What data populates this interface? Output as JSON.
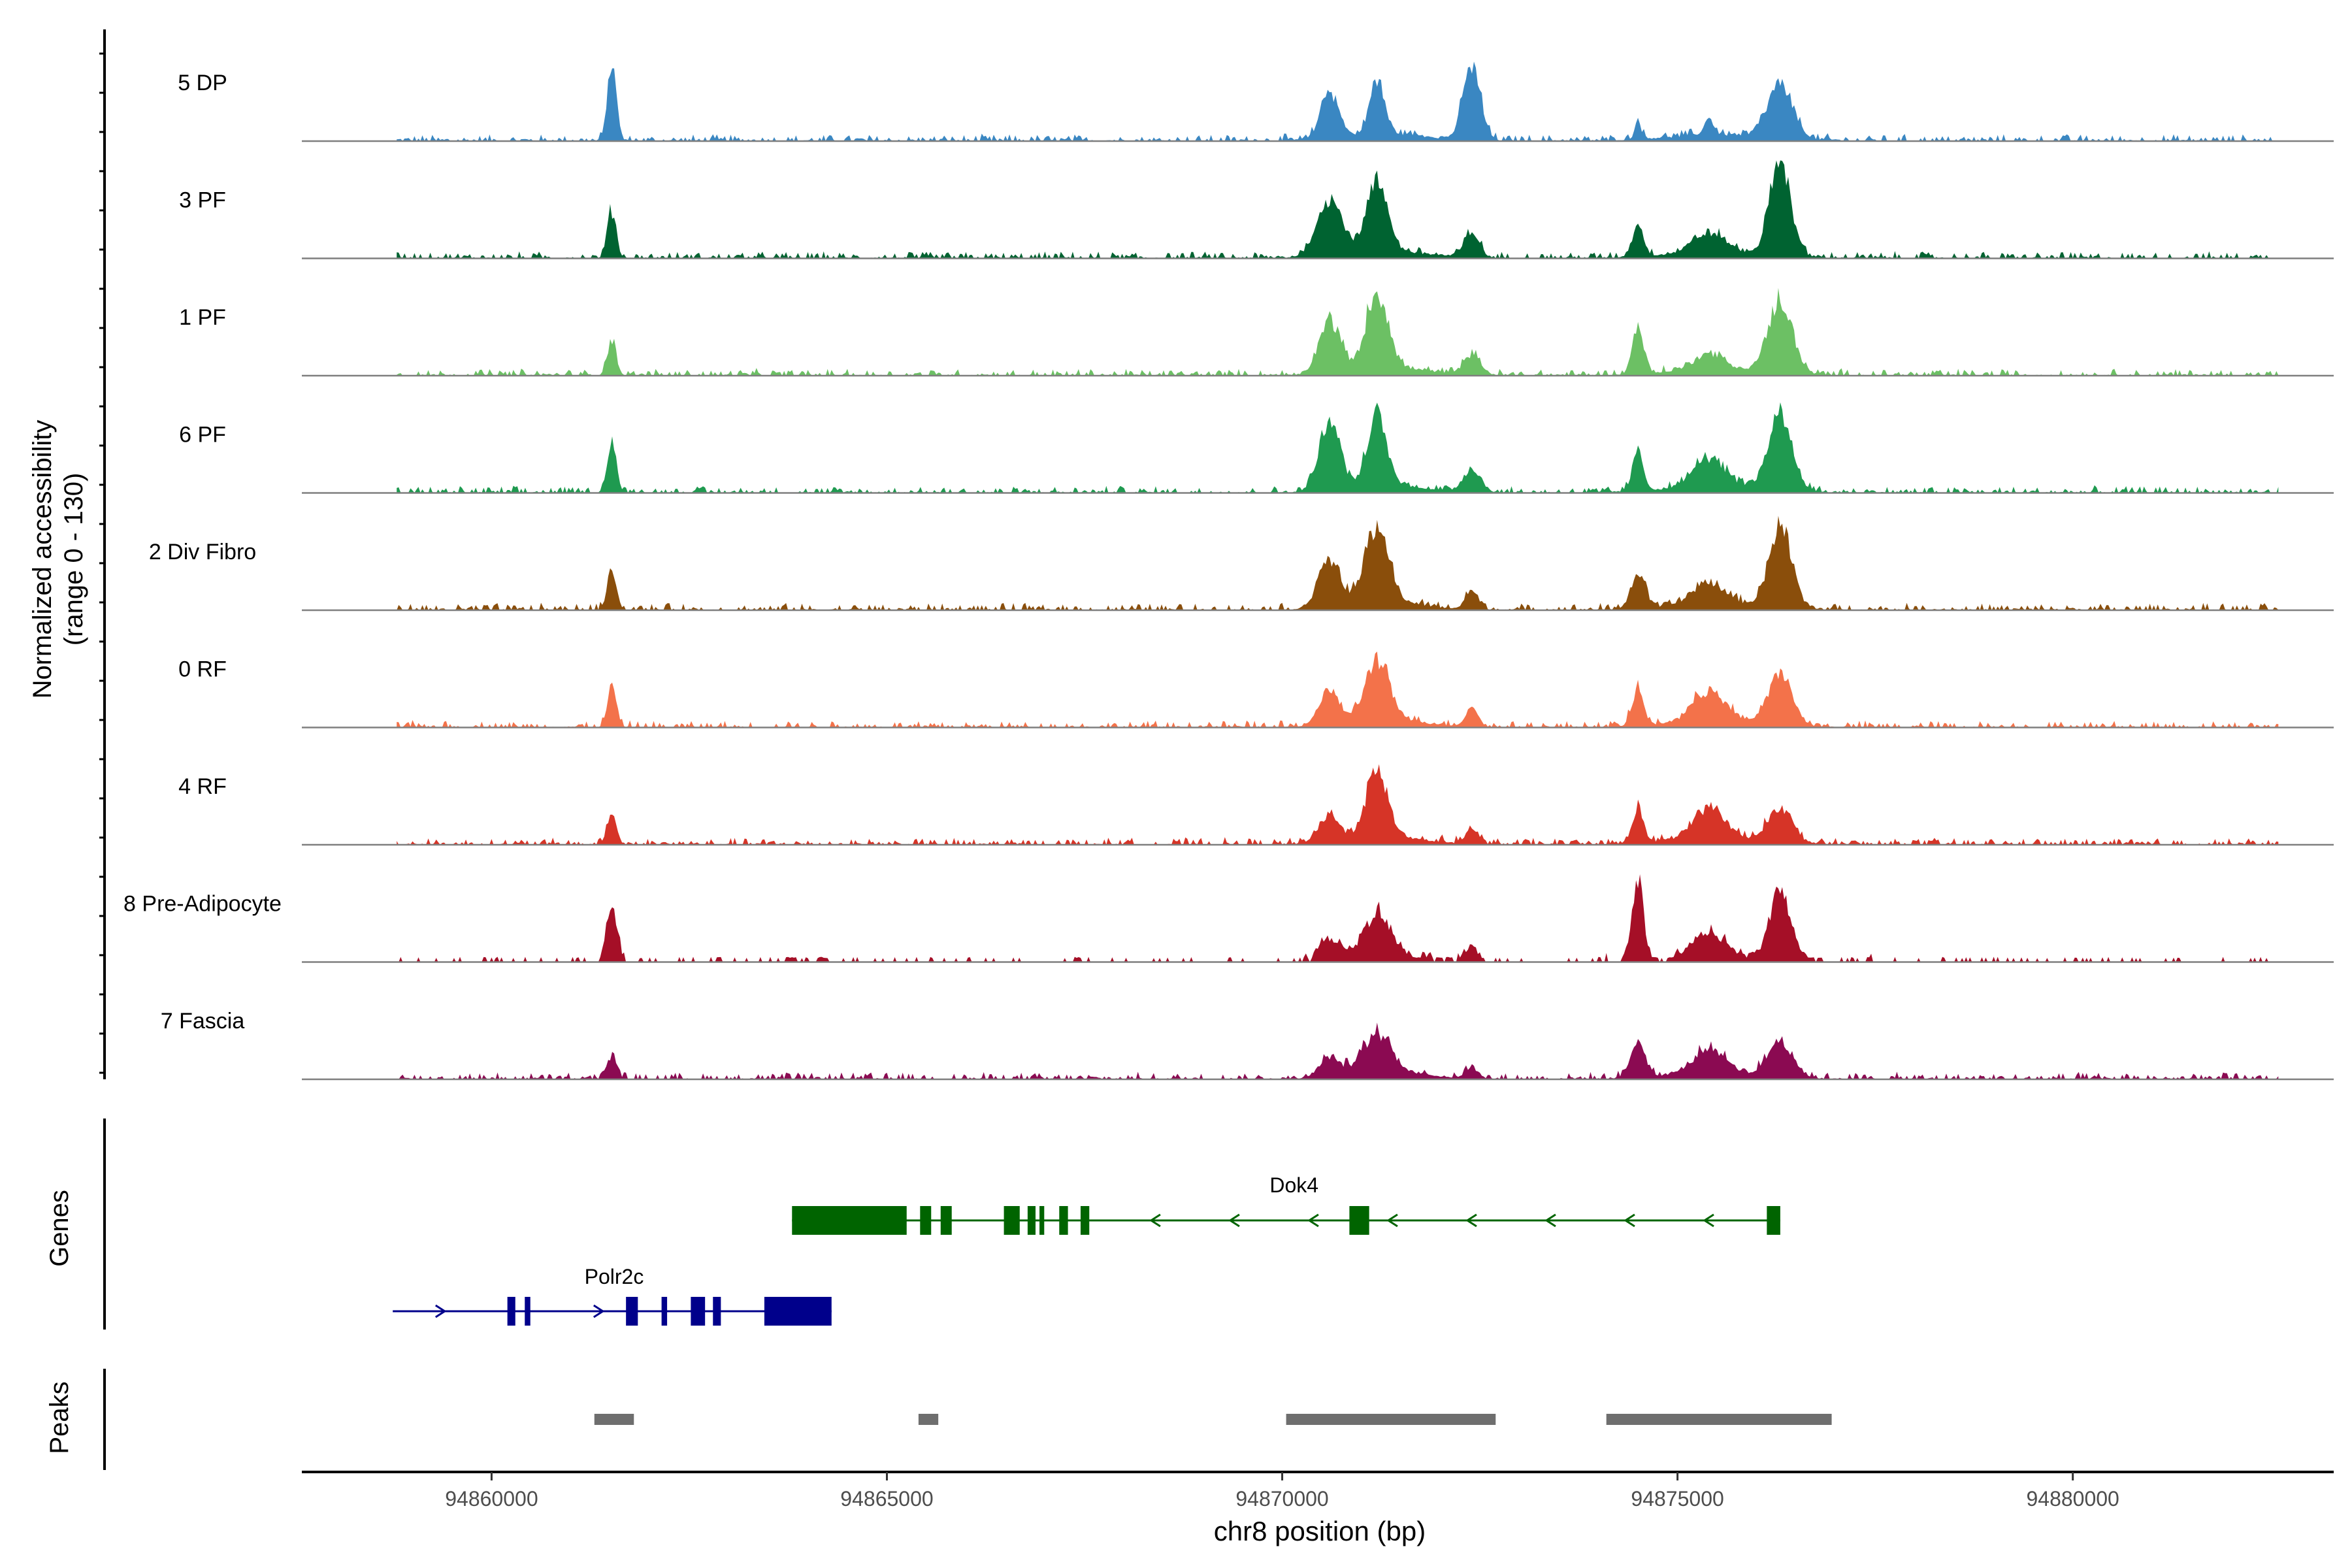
{
  "chart_data": {
    "type": "area",
    "title": "",
    "ylabel_line1": "Normalized accessibility",
    "ylabel_line2": "(range 0 - 130)",
    "y_range": [
      0,
      130
    ],
    "xlabel": "chr8 position (bp)",
    "xlim": [
      94857600,
      94883300
    ],
    "x_ticks": [
      94860000,
      94865000,
      94870000,
      94875000,
      94880000
    ],
    "x_tick_labels": [
      "94860000",
      "94865000",
      "94870000",
      "94875000",
      "94880000"
    ],
    "tracks": [
      {
        "name": "5 DP",
        "color": "#3a87c2",
        "peaks": [
          [
            94861520,
            100,
            55
          ],
          [
            94870600,
            62,
            110
          ],
          [
            94871200,
            72,
            90
          ],
          [
            94872400,
            100,
            110
          ],
          [
            94874500,
            25,
            40
          ],
          [
            94875400,
            22,
            60
          ],
          [
            94876300,
            70,
            160
          ]
        ]
      },
      {
        "name": "3 PF",
        "color": "#006331",
        "peaks": [
          [
            94861520,
            62,
            55
          ],
          [
            94870600,
            75,
            160
          ],
          [
            94871200,
            88,
            130
          ],
          [
            94872400,
            35,
            90
          ],
          [
            94874500,
            40,
            70
          ],
          [
            94875400,
            25,
            200
          ],
          [
            94876300,
            125,
            130
          ]
        ]
      },
      {
        "name": "1 PF",
        "color": "#6cc064",
        "peaks": [
          [
            94861520,
            48,
            55
          ],
          [
            94870600,
            70,
            130
          ],
          [
            94871200,
            100,
            140
          ],
          [
            94872400,
            25,
            110
          ],
          [
            94874500,
            60,
            70
          ],
          [
            94875400,
            20,
            180
          ],
          [
            94876300,
            95,
            150
          ]
        ]
      },
      {
        "name": "6 PF",
        "color": "#1f9a50",
        "peaks": [
          [
            94861520,
            70,
            55
          ],
          [
            94870600,
            95,
            130
          ],
          [
            94871200,
            92,
            120
          ],
          [
            94872400,
            30,
            110
          ],
          [
            94874500,
            50,
            70
          ],
          [
            94875400,
            38,
            200
          ],
          [
            94876300,
            100,
            150
          ]
        ]
      },
      {
        "name": "2 Div Fibro",
        "color": "#8a4e0b",
        "peaks": [
          [
            94861520,
            58,
            55
          ],
          [
            94870600,
            62,
            140
          ],
          [
            94871200,
            100,
            150
          ],
          [
            94872400,
            25,
            80
          ],
          [
            94874500,
            45,
            90
          ],
          [
            94875400,
            28,
            200
          ],
          [
            94876300,
            110,
            140
          ]
        ]
      },
      {
        "name": "0 RF",
        "color": "#f3724a",
        "peaks": [
          [
            94861520,
            52,
            55
          ],
          [
            94870600,
            42,
            130
          ],
          [
            94871200,
            80,
            150
          ],
          [
            94872400,
            25,
            80
          ],
          [
            94874500,
            50,
            70
          ],
          [
            94875400,
            40,
            200
          ],
          [
            94876300,
            65,
            150
          ]
        ]
      },
      {
        "name": "4 RF",
        "color": "#d63427",
        "peaks": [
          [
            94861520,
            45,
            55
          ],
          [
            94870600,
            35,
            130
          ],
          [
            94871200,
            85,
            140
          ],
          [
            94872400,
            20,
            80
          ],
          [
            94874500,
            45,
            70
          ],
          [
            94875400,
            40,
            200
          ],
          [
            94876300,
            45,
            150
          ]
        ]
      },
      {
        "name": "8 Pre-Adipocyte",
        "color": "#a50f27",
        "peaks": [
          [
            94861520,
            70,
            70
          ],
          [
            94870600,
            25,
            130
          ],
          [
            94871200,
            55,
            160
          ],
          [
            94872400,
            20,
            80
          ],
          [
            94874500,
            110,
            70
          ],
          [
            94875400,
            30,
            200
          ],
          [
            94876300,
            90,
            130
          ]
        ]
      },
      {
        "name": "7 Fascia",
        "color": "#8b0a52",
        "peaks": [
          [
            94861520,
            30,
            60
          ],
          [
            94870600,
            25,
            130
          ],
          [
            94871200,
            50,
            180
          ],
          [
            94872400,
            15,
            80
          ],
          [
            94874500,
            50,
            90
          ],
          [
            94875400,
            30,
            200
          ],
          [
            94876300,
            48,
            150
          ]
        ]
      }
    ],
    "genes_label": "Genes",
    "genes": [
      {
        "name": "Dok4",
        "color": "#006400",
        "strand": "-",
        "start": 94863800,
        "end": 94876300,
        "exons": [
          [
            94863800,
            94865250
          ],
          [
            94865420,
            94865560
          ],
          [
            94865680,
            94865820
          ],
          [
            94866480,
            94866680
          ],
          [
            94866780,
            94866880
          ],
          [
            94866930,
            94866990
          ],
          [
            94867180,
            94867290
          ],
          [
            94867450,
            94867560
          ],
          [
            94870850,
            94871100
          ],
          [
            94876130,
            94876300
          ]
        ]
      },
      {
        "name": "Polr2c",
        "color": "#00008b",
        "strand": "+",
        "start": 94858750,
        "end": 94864300,
        "exons": [
          [
            94860200,
            94860300
          ],
          [
            94860420,
            94860490
          ],
          [
            94861700,
            94861850
          ],
          [
            94862150,
            94862220
          ],
          [
            94862520,
            94862700
          ],
          [
            94862800,
            94862900
          ],
          [
            94863450,
            94864300
          ]
        ]
      }
    ],
    "peaks_label": "Peaks",
    "peak_regions": [
      [
        94861300,
        94861800
      ],
      [
        94865400,
        94865650
      ],
      [
        94870050,
        94872700
      ],
      [
        94874100,
        94876950
      ]
    ]
  }
}
